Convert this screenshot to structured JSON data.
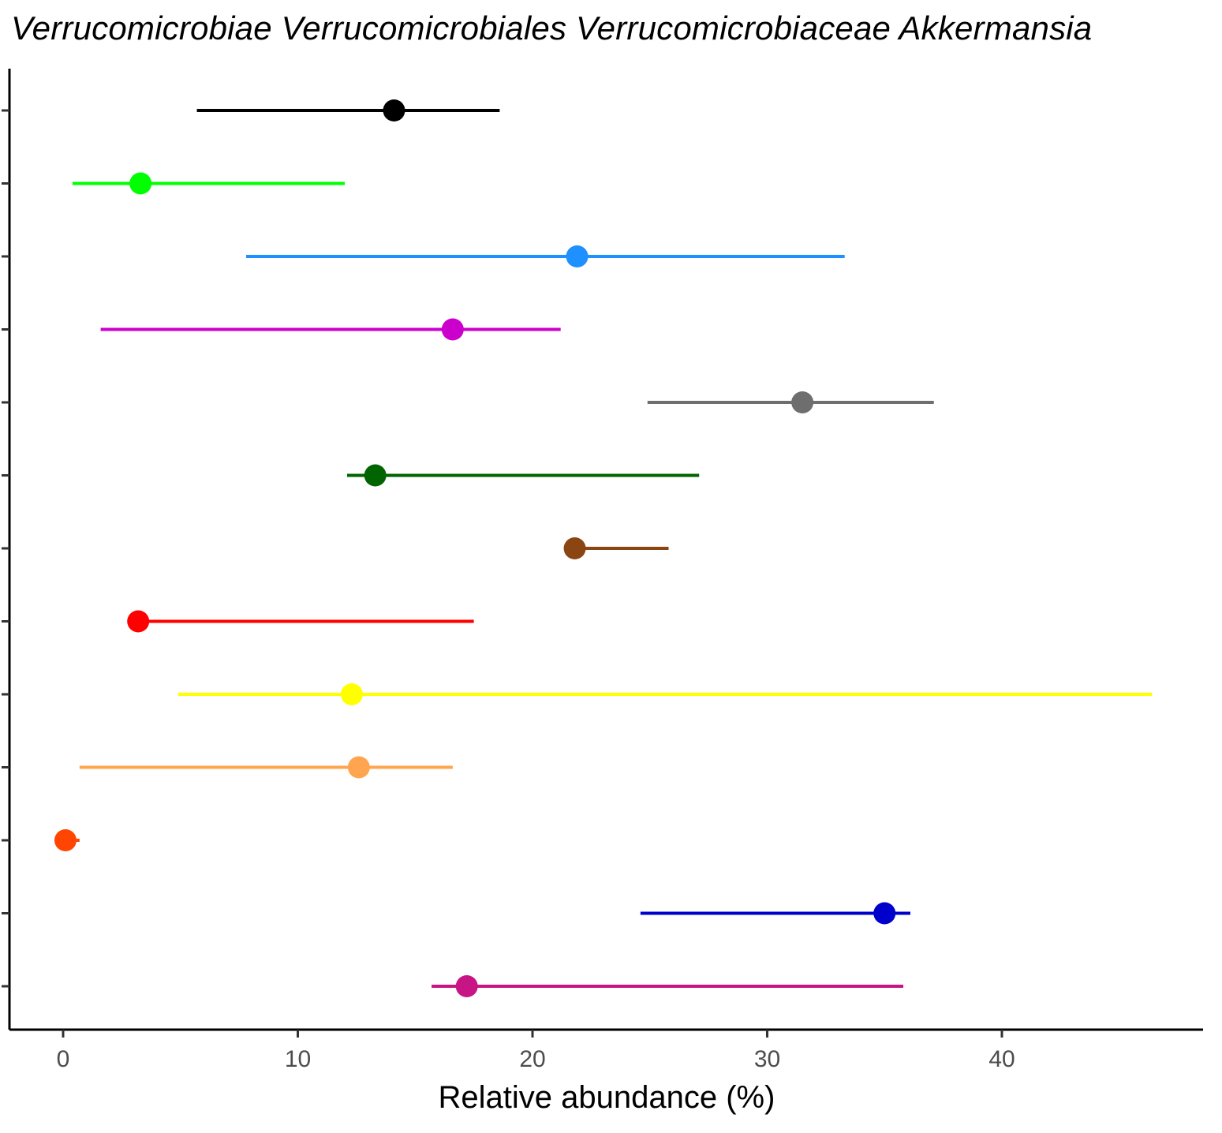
{
  "chart_data": {
    "type": "scatter",
    "title": "Verrucomicrobiae Verrucomicrobiales Verrucomicrobiaceae Akkermansia",
    "xlabel": "Relative abundance (%)",
    "ylabel": "",
    "xlim": [
      -2.3,
      48
    ],
    "x_ticks": [
      0,
      10,
      20,
      30,
      40
    ],
    "grid": false,
    "legend": "none",
    "series": [
      {
        "point": 14.1,
        "low": 5.7,
        "high": 18.6,
        "color": "#000000"
      },
      {
        "point": 3.3,
        "low": 0.4,
        "high": 12.0,
        "color": "#00ff00"
      },
      {
        "point": 21.9,
        "low": 7.8,
        "high": 33.3,
        "color": "#1e90ff"
      },
      {
        "point": 16.6,
        "low": 1.6,
        "high": 21.2,
        "color": "#cc00cc"
      },
      {
        "point": 31.5,
        "low": 24.9,
        "high": 37.1,
        "color": "#6e6e6e"
      },
      {
        "point": 13.3,
        "low": 12.1,
        "high": 27.1,
        "color": "#006400"
      },
      {
        "point": 21.8,
        "low": 21.8,
        "high": 25.8,
        "color": "#8b4513"
      },
      {
        "point": 3.2,
        "low": 3.2,
        "high": 17.5,
        "color": "#ff0000"
      },
      {
        "point": 12.3,
        "low": 4.9,
        "high": 46.4,
        "color": "#ffff00"
      },
      {
        "point": 12.6,
        "low": 0.7,
        "high": 16.6,
        "color": "#ffa54f"
      },
      {
        "point": 0.1,
        "low": 0.1,
        "high": 0.7,
        "color": "#ff4500"
      },
      {
        "point": 35.0,
        "low": 24.6,
        "high": 36.1,
        "color": "#0000cd"
      },
      {
        "point": 17.2,
        "low": 15.7,
        "high": 35.8,
        "color": "#c71585"
      }
    ]
  }
}
